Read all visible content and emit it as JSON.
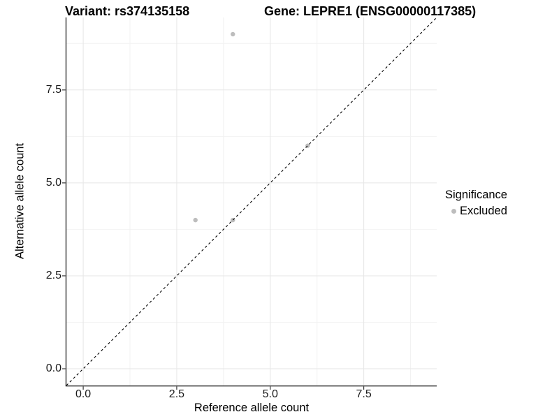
{
  "legend": {
    "title": "Significance",
    "items": [
      {
        "label": "Excluded",
        "color": "#bdbdbd"
      }
    ]
  },
  "chart_data": {
    "type": "scatter",
    "title_left": "Variant: rs374135158",
    "title_right": "Gene: LEPRE1 (ENSG00000117385)",
    "xlabel": "Reference allele count",
    "ylabel": "Alternative allele count",
    "xlim": [
      -0.45,
      9.45
    ],
    "ylim": [
      -0.45,
      9.45
    ],
    "x_ticks": {
      "values": [
        0,
        2.5,
        5,
        7.5
      ],
      "labels": [
        "0.0",
        "2.5",
        "5.0",
        "7.5"
      ]
    },
    "y_ticks": {
      "values": [
        0,
        2.5,
        5,
        7.5
      ],
      "labels": [
        "0.0",
        "2.5",
        "5.0",
        "7.5"
      ]
    },
    "x_minor_ticks": [
      1.25,
      3.75,
      6.25,
      8.75
    ],
    "y_minor_ticks": [
      1.25,
      3.75,
      6.25,
      8.75
    ],
    "grid": true,
    "legend_position": "right",
    "series": [
      {
        "name": "Excluded",
        "color": "#bdbdbd",
        "marker_radius": 3.2,
        "points": [
          [
            3,
            4
          ],
          [
            4,
            4
          ],
          [
            4,
            9
          ],
          [
            6,
            6
          ]
        ]
      }
    ],
    "identity_line": {
      "style": "dashed",
      "color": "#000000",
      "x": [
        -0.45,
        9.45
      ],
      "y": [
        -0.45,
        9.45
      ]
    },
    "style": {
      "axis_color": "#333333",
      "grid_major_color": "#e6e6e6",
      "grid_minor_color": "#f2f2f2",
      "tick_text_color": "#1a1a1a"
    }
  }
}
